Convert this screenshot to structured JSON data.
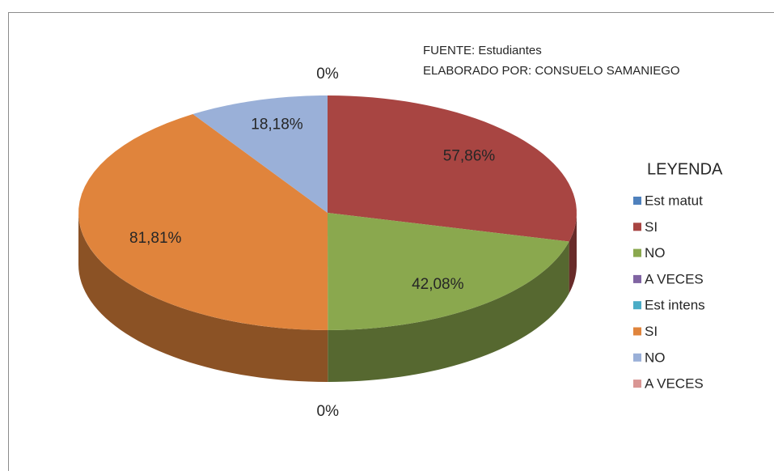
{
  "chart_data": {
    "type": "pie",
    "source": "FUENTE: Estudiantes",
    "author": "ELABORADO POR: CONSUELO SAMANIEGO",
    "legend_title": "LEYENDA",
    "legend": "right",
    "categories": [
      "Est  matut",
      "SI",
      "NO",
      "A VECES",
      "Est intens",
      "SI",
      "NO",
      "A VECES"
    ],
    "values": [
      0,
      57.86,
      42.08,
      0,
      0,
      81.81,
      18.18,
      0
    ],
    "value_labels": [
      "0%",
      "57,86%",
      "42,08%",
      "0%",
      null,
      "81,81%",
      "18,18%",
      null
    ],
    "colors": [
      "#4f81bd",
      "#a84542",
      "#8aa84e",
      "#8064a2",
      "#4bacc6",
      "#e0843c",
      "#9ab0d8",
      "#d99694"
    ]
  }
}
